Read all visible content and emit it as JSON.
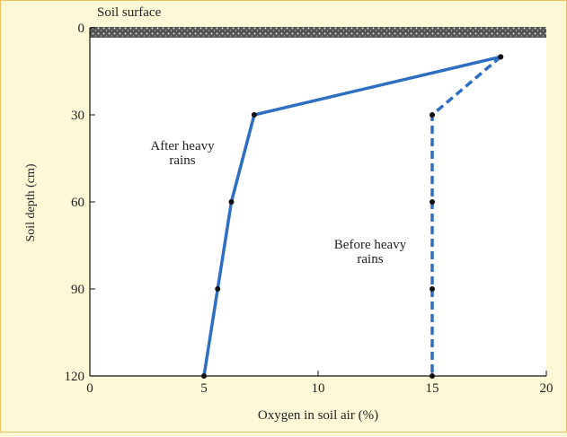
{
  "chart_data": {
    "type": "line",
    "y_axis_label": "Soil depth (cm)",
    "x_axis_label": "Oxygen in soil air (%)",
    "surface_label": "Soil surface",
    "y": [
      10,
      30,
      60,
      90,
      120
    ],
    "series": [
      {
        "annotation": [
          "After heavy",
          "rains"
        ],
        "color": "#2e6fc4",
        "style": "solid",
        "x": [
          18,
          7.2,
          6.2,
          5.6,
          5
        ]
      },
      {
        "annotation": [
          "Before heavy",
          "rains"
        ],
        "color": "#2e6fc4",
        "style": "dashed",
        "x": [
          18,
          15,
          15,
          15,
          15
        ]
      }
    ],
    "xlim": [
      0,
      20
    ],
    "xticks": [
      0,
      5,
      10,
      15,
      20
    ],
    "ylim": [
      0,
      120
    ],
    "yticks": [
      0,
      30,
      60,
      90,
      120
    ],
    "y_inverted": true
  }
}
